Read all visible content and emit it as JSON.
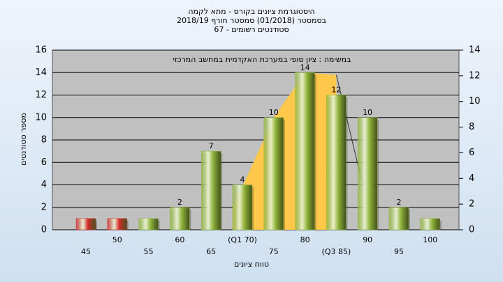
{
  "chart_data": {
    "type": "bar",
    "title": "היסטוגרמת ציונים בקורס - מתא לקמה",
    "subtitle": "בסמסטר  (01/2018)  סמסטר חורף 2018/19",
    "subtitle2": "סטודנטים רשומים - 67",
    "annotation": "במשימה : ציון סופי במערכת האקדמית במחשב המרכזי",
    "x_label": "טווח ציונים",
    "y_label": "מספר סטודנטים",
    "categories": [
      "45",
      "50",
      "55",
      "60",
      "65",
      "(Q1 70)",
      "75",
      "80",
      "(Q3 85)",
      "90",
      "95",
      "100"
    ],
    "values": [
      1,
      1,
      1,
      2,
      7,
      4,
      10,
      14,
      12,
      10,
      2,
      1
    ],
    "value_labels": [
      null,
      null,
      null,
      "2",
      "7",
      "4",
      "10",
      "14",
      "12",
      "10",
      "2",
      null
    ],
    "colors": [
      "#d42a2a",
      "#d42a2a",
      "#8fb43a",
      "#8fb43a",
      "#8fb43a",
      "#8fb43a",
      "#8fb43a",
      "#8fb43a",
      "#8fb43a",
      "#8fb43a",
      "#8fb43a",
      "#8fb43a"
    ],
    "quartile_area": {
      "color": "#ffc84a",
      "x": [
        68.5,
        75,
        80,
        85,
        89
      ],
      "values": [
        2,
        10,
        14,
        13.8,
        4.5
      ]
    },
    "ylim": [
      0,
      16
    ],
    "yticks": [
      0,
      2,
      4,
      6,
      8,
      10,
      12,
      14,
      16
    ],
    "y2lim": [
      0,
      14
    ],
    "y2ticks": [
      0,
      2,
      4,
      6,
      8,
      10,
      12,
      14
    ],
    "grid": true
  }
}
